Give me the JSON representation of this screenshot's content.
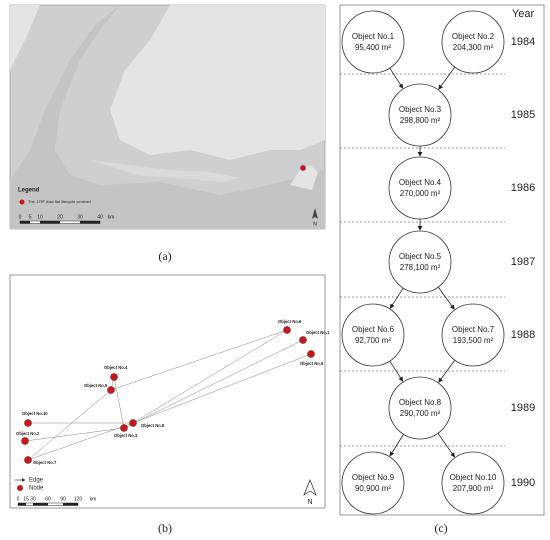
{
  "panel_a": {
    "caption": "(a)",
    "legend_title": "Legend",
    "legend_entry": "The 179ᵗʰ tidal flat lifecycle centroid",
    "scale": [
      "0",
      "5",
      "10",
      "20",
      "30",
      "40",
      "km"
    ],
    "north": "N"
  },
  "panel_b": {
    "caption": "(b)",
    "legend": [
      "Edge",
      "Node"
    ],
    "scale": [
      "0",
      "15",
      "30",
      "60",
      "90",
      "120",
      "km"
    ],
    "north": "N"
  },
  "panel_c": {
    "caption": "(c)",
    "year_header": "Year",
    "years": [
      "1984",
      "1985",
      "1986",
      "1987",
      "1988",
      "1989",
      "1990"
    ]
  },
  "nodes": [
    {
      "label": "Object No.1",
      "area": "95,400 m²"
    },
    {
      "label": "Object No.2",
      "area": "204,300 m²"
    },
    {
      "label": "Object No.3",
      "area": "298,800 m²"
    },
    {
      "label": "Object No.4",
      "area": "270,000 m²"
    },
    {
      "label": "Object No.5",
      "area": "278,100 m²"
    },
    {
      "label": "Object No.6",
      "area": "92,700 m²"
    },
    {
      "label": "Object No.7",
      "area": "193,500 m²"
    },
    {
      "label": "Object No.8",
      "area": "290,700 m²"
    },
    {
      "label": "Object No.9",
      "area": "90,900 m²"
    },
    {
      "label": "Object No.10",
      "area": "207,900 m²"
    }
  ]
}
